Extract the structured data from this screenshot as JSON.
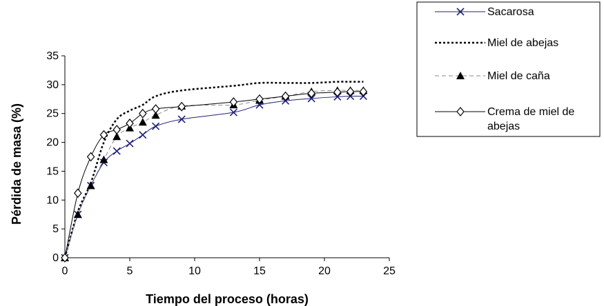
{
  "chart_data": {
    "type": "line",
    "xlabel": "Tiempo del proceso (horas)",
    "ylabel": "Pérdida  de masa (%)",
    "xlim": [
      0,
      25
    ],
    "ylim": [
      0,
      35
    ],
    "x_ticks": [
      0,
      5,
      10,
      15,
      20,
      25
    ],
    "y_ticks": [
      0,
      5,
      10,
      15,
      20,
      25,
      30,
      35
    ],
    "grid": false,
    "legend_position": "right",
    "series": [
      {
        "name": "Sacarosa",
        "color": "#1f1f7a",
        "line_style": "solid",
        "marker": "x",
        "x": [
          0,
          1,
          2,
          3,
          4,
          5,
          6,
          7,
          9,
          13,
          15,
          17,
          19,
          21,
          22,
          23
        ],
        "y": [
          0,
          7.5,
          12.5,
          16.5,
          18.5,
          19.8,
          21.3,
          22.8,
          24,
          25.2,
          26.5,
          27.2,
          27.6,
          27.9,
          28,
          28
        ]
      },
      {
        "name": "Miel de abejas",
        "color": "#000000",
        "line_style": "dotted",
        "marker": "none",
        "x": [
          0,
          1,
          2,
          3,
          4,
          5,
          6,
          7,
          9,
          13,
          15,
          17,
          19,
          21,
          22,
          23
        ],
        "y": [
          0,
          8,
          13,
          20,
          24,
          25.5,
          26.5,
          28,
          29,
          29.8,
          30.3,
          30.3,
          30.3,
          30.5,
          30.5,
          30.5
        ]
      },
      {
        "name": "Miel de caña",
        "color": "#888888",
        "line_style": "dashed",
        "marker": "triangle",
        "x": [
          0,
          1,
          2,
          3,
          4,
          5,
          6,
          7,
          9,
          13,
          15,
          17,
          19,
          21,
          22,
          23
        ],
        "y": [
          0,
          7.5,
          12.5,
          17,
          21,
          22.5,
          23.5,
          24.7,
          26.3,
          26.5,
          27.3,
          28,
          28.8,
          29,
          29,
          29
        ]
      },
      {
        "name": "Crema de miel de abejas",
        "color": "#000000",
        "line_style": "solid",
        "marker": "diamond",
        "x": [
          0,
          1,
          2,
          3,
          4,
          5,
          6,
          7,
          9,
          13,
          15,
          17,
          19,
          21,
          22,
          23
        ],
        "y": [
          0,
          11.2,
          17.5,
          21.3,
          22.2,
          23.3,
          25,
          25.8,
          26.2,
          27,
          27.5,
          28,
          28.5,
          28.7,
          28.8,
          28.8
        ]
      }
    ]
  }
}
